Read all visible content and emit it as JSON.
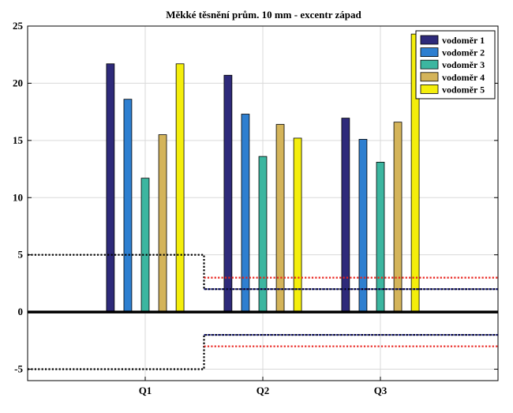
{
  "chart_data": {
    "type": "bar",
    "title": "Měkké těsnění prům. 10 mm - excentr západ",
    "xlabel": "",
    "ylabel": "",
    "categories": [
      "Q1",
      "Q2",
      "Q3"
    ],
    "ylim": [
      -6,
      25
    ],
    "yticks": [
      -5,
      0,
      5,
      10,
      15,
      20,
      25
    ],
    "grid": true,
    "legend_position": "top-right",
    "series": [
      {
        "name": "vodoměr 1",
        "color": "#2e2a7a",
        "values": [
          21.7,
          20.7,
          16.95
        ]
      },
      {
        "name": "vodoměr 2",
        "color": "#2e7fd0",
        "values": [
          18.6,
          17.3,
          15.1
        ]
      },
      {
        "name": "vodoměr 3",
        "color": "#3cb6a0",
        "values": [
          11.7,
          13.6,
          13.1
        ]
      },
      {
        "name": "vodoměr 4",
        "color": "#d4b45a",
        "values": [
          15.5,
          16.4,
          16.6
        ]
      },
      {
        "name": "vodoměr 5",
        "color": "#f4ee0c",
        "values": [
          21.7,
          15.2,
          24.3
        ]
      }
    ],
    "limit_lines": [
      {
        "color": "#000000",
        "style": "dotted",
        "points": [
          [
            0.0,
            5
          ],
          [
            1.5,
            5
          ],
          [
            1.5,
            2
          ],
          [
            4.0,
            2
          ]
        ]
      },
      {
        "color": "#000000",
        "style": "dotted",
        "points": [
          [
            0.0,
            -5
          ],
          [
            1.5,
            -5
          ],
          [
            1.5,
            -2
          ],
          [
            4.0,
            -2
          ]
        ]
      },
      {
        "color": "#e8221c",
        "style": "dotted",
        "points": [
          [
            1.5,
            3
          ],
          [
            4.0,
            3
          ]
        ]
      },
      {
        "color": "#1c1f7a",
        "style": "dotted",
        "points": [
          [
            1.5,
            2
          ],
          [
            4.0,
            2
          ]
        ]
      },
      {
        "color": "#e8221c",
        "style": "dotted",
        "points": [
          [
            1.5,
            -3
          ],
          [
            4.0,
            -3
          ]
        ]
      },
      {
        "color": "#1c1f7a",
        "style": "dotted",
        "points": [
          [
            1.5,
            -2
          ],
          [
            4.0,
            -2
          ]
        ]
      }
    ],
    "zero_line": {
      "color": "#000000"
    }
  }
}
